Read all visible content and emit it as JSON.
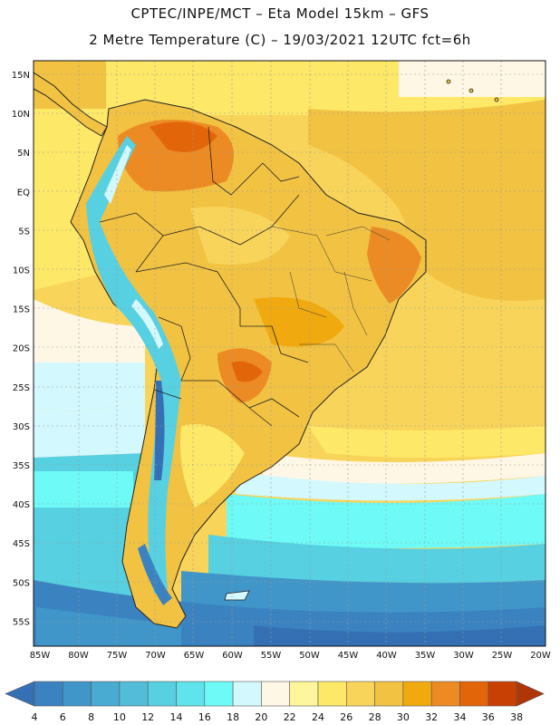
{
  "header": {
    "line1": "CPTEC/INPE/MCT –  Eta Model 15km – GFS",
    "line2": "2 Metre Temperature (C) – 19/03/2021 12UTC fct=6h"
  },
  "latitude_labels": [
    "15N",
    "10N",
    "5N",
    "EQ",
    "5S",
    "10S",
    "15S",
    "20S",
    "25S",
    "30S",
    "35S",
    "40S",
    "45S",
    "50S",
    "55S"
  ],
  "longitude_labels": [
    "85W",
    "80W",
    "75W",
    "70W",
    "65W",
    "60W",
    "55W",
    "50W",
    "45W",
    "40W",
    "35W",
    "30W",
    "25W",
    "20W"
  ],
  "colorbar": {
    "ticks": [
      "4",
      "6",
      "8",
      "10",
      "12",
      "14",
      "16",
      "18",
      "20",
      "22",
      "24",
      "26",
      "28",
      "30",
      "32",
      "34",
      "36",
      "38"
    ],
    "colors": [
      "#3570b5",
      "#3b83c0",
      "#4196c9",
      "#49aad2",
      "#53bcd9",
      "#57d0e1",
      "#5fe3ec",
      "#6efbf7",
      "#d3f8fd",
      "#fff7e6",
      "#fff59a",
      "#fde868",
      "#f8d45a",
      "#f2c242",
      "#f0aa10",
      "#ec8b23",
      "#e3650a",
      "#c94005",
      "#b03607"
    ]
  },
  "chart_data": {
    "type": "heatmap",
    "title": "2 Metre Temperature (C)",
    "model": "Eta Model 15km – GFS",
    "init": "19/03/2021 12UTC",
    "forecast": "fct=6h",
    "lat_range": [
      "15N",
      "55S"
    ],
    "lon_range": [
      "85W",
      "20W"
    ],
    "value_range": [
      4,
      38
    ],
    "units": "C"
  }
}
